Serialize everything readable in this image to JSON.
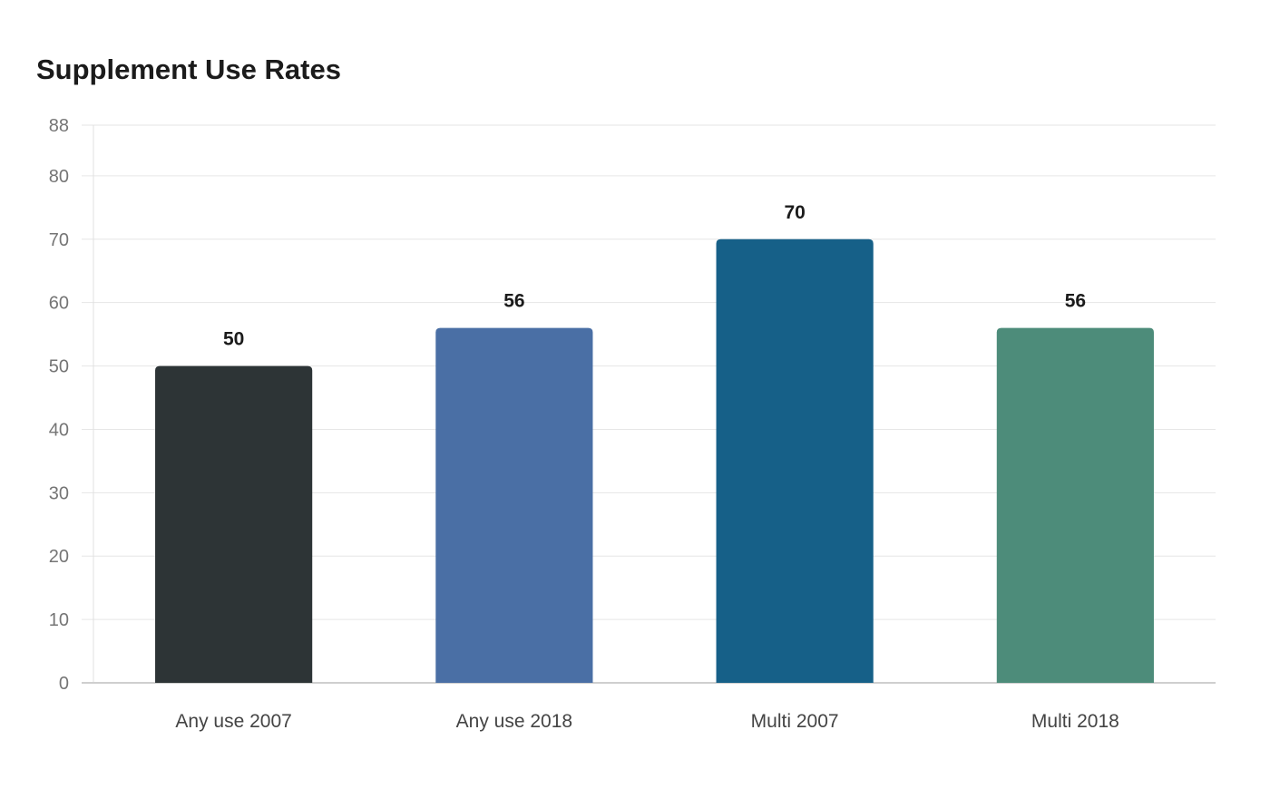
{
  "chart_data": {
    "type": "bar",
    "title": "Supplement Use Rates",
    "xlabel": "",
    "ylabel": "",
    "categories": [
      "Any use 2007",
      "Any use 2018",
      "Multi 2007",
      "Multi 2018"
    ],
    "values": [
      50,
      56,
      70,
      56
    ],
    "data_labels": [
      "50",
      "56",
      "70",
      "56"
    ],
    "colors": [
      "#2d3436",
      "#4a6fa5",
      "#166088",
      "#4d8c7a"
    ],
    "ylim": [
      0,
      88
    ],
    "yticks": [
      0,
      10,
      20,
      30,
      40,
      50,
      60,
      70,
      80,
      88
    ],
    "grid": true,
    "legend": "none"
  }
}
